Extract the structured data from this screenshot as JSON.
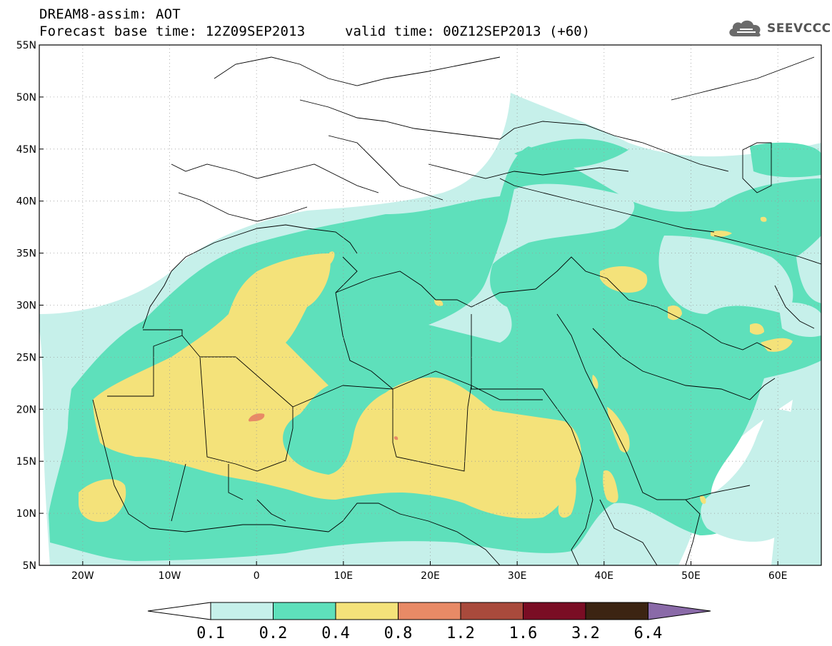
{
  "header": {
    "title": "DREAM8-assim: AOT",
    "base_time": "Forecast base time: 12Z09SEP2013",
    "valid_time": "valid time: 00Z12SEP2013 (+60)"
  },
  "logo": {
    "text": "SEEVCCC",
    "icon": "cloud-icon"
  },
  "map": {
    "lon_range": [
      -25,
      65
    ],
    "lat_range": [
      5,
      55
    ],
    "lon_ticks": [
      {
        "v": -20,
        "label": "20W"
      },
      {
        "v": -10,
        "label": "10W"
      },
      {
        "v": 0,
        "label": "0"
      },
      {
        "v": 10,
        "label": "10E"
      },
      {
        "v": 20,
        "label": "20E"
      },
      {
        "v": 30,
        "label": "30E"
      },
      {
        "v": 40,
        "label": "40E"
      },
      {
        "v": 50,
        "label": "50E"
      },
      {
        "v": 60,
        "label": "60E"
      }
    ],
    "lat_ticks": [
      {
        "v": 55,
        "label": "55N"
      },
      {
        "v": 50,
        "label": "50N"
      },
      {
        "v": 45,
        "label": "45N"
      },
      {
        "v": 40,
        "label": "40N"
      },
      {
        "v": 35,
        "label": "35N"
      },
      {
        "v": 30,
        "label": "30N"
      },
      {
        "v": 25,
        "label": "25N"
      },
      {
        "v": 20,
        "label": "20N"
      },
      {
        "v": 15,
        "label": "15N"
      },
      {
        "v": 10,
        "label": "10N"
      },
      {
        "v": 5,
        "label": "5N"
      }
    ],
    "grid": "dotted"
  },
  "legend": {
    "labels": [
      "0.1",
      "0.2",
      "0.4",
      "0.8",
      "1.2",
      "1.6",
      "3.2",
      "6.4"
    ],
    "colors": [
      "#c6f0ea",
      "#5ee0bb",
      "#f4e27a",
      "#e88a66",
      "#a94a3c",
      "#7a0d24",
      "#3c2412",
      "#8a6aa8"
    ],
    "below_color": "#ffffff"
  }
}
